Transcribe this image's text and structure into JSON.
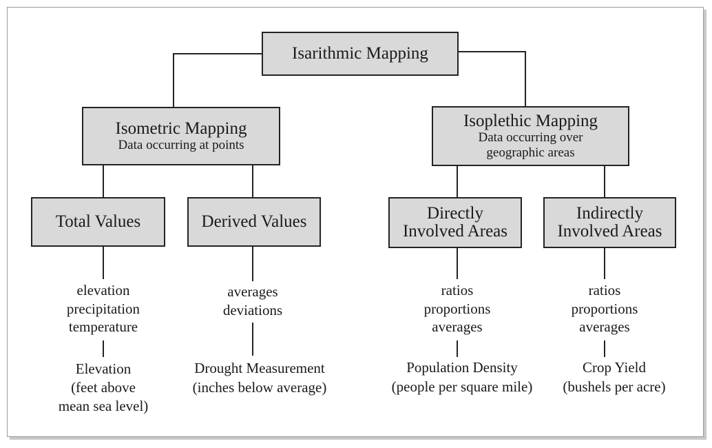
{
  "root": {
    "title": "Isarithmic Mapping"
  },
  "isometric": {
    "title": "Isometric Mapping",
    "subtitle": "Data occurring at points"
  },
  "isopleth": {
    "title": "Isoplethic Mapping",
    "subtitle_line1": "Data occurring over",
    "subtitle_line2": "geographic areas"
  },
  "total_values": {
    "title": "Total Values",
    "data_types": [
      "elevation",
      "precipitation",
      "temperature"
    ],
    "example": [
      "Elevation",
      "(feet above",
      "mean sea level)"
    ]
  },
  "derived_values": {
    "title": "Derived Values",
    "data_types": [
      "averages",
      "deviations"
    ],
    "example": [
      "Drought Measurement",
      "(inches below average)"
    ]
  },
  "directly_involved": {
    "title_line1": "Directly",
    "title_line2": "Involved Areas",
    "data_types": [
      "ratios",
      "proportions",
      "averages"
    ],
    "example": [
      "Population Density",
      "(people per square mile)"
    ]
  },
  "indirectly_involved": {
    "title_line1": "Indirectly",
    "title_line2": "Involved Areas",
    "data_types": [
      "ratios",
      "proportions",
      "averages"
    ],
    "example": [
      "Crop Yield",
      "(bushels per acre)"
    ]
  }
}
